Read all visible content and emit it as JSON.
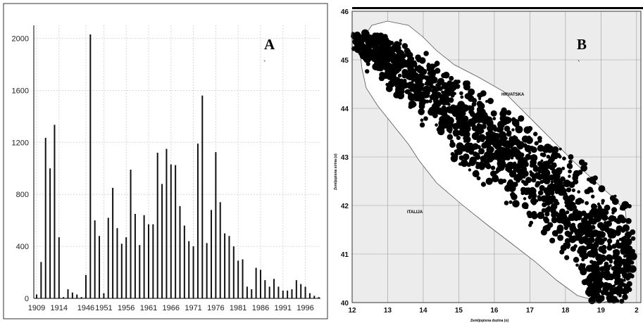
{
  "chart_data": [
    {
      "panel_label": "A",
      "type": "bar",
      "x": [
        1909,
        1910,
        1911,
        1912,
        1913,
        1914,
        1915,
        1916,
        1917,
        1918,
        1919,
        1947,
        1948,
        1949,
        1950,
        1951,
        1952,
        1953,
        1954,
        1955,
        1956,
        1957,
        1958,
        1959,
        1960,
        1961,
        1962,
        1963,
        1964,
        1965,
        1966,
        1967,
        1968,
        1969,
        1970,
        1971,
        1972,
        1973,
        1974,
        1975,
        1976,
        1977,
        1978,
        1979,
        1980,
        1981,
        1982,
        1983,
        1984,
        1985,
        1986,
        1987,
        1988,
        1989,
        1990,
        1991,
        1992,
        1993,
        1994,
        1995,
        1996,
        1997,
        1998,
        1999
      ],
      "values": [
        30,
        280,
        1235,
        1000,
        1335,
        470,
        10,
        70,
        45,
        30,
        10,
        180,
        2030,
        600,
        480,
        40,
        620,
        850,
        540,
        420,
        470,
        990,
        650,
        410,
        640,
        570,
        570,
        1120,
        880,
        1150,
        1030,
        1025,
        710,
        560,
        440,
        400,
        1190,
        1560,
        425,
        680,
        1125,
        740,
        500,
        480,
        400,
        290,
        300,
        90,
        70,
        235,
        220,
        140,
        90,
        150,
        90,
        60,
        60,
        70,
        140,
        110,
        90,
        40,
        20,
        10
      ],
      "xticks": [
        "1909",
        "1914",
        "1946",
        "1951",
        "1956",
        "1961",
        "1966",
        "1971",
        "1976",
        "1981",
        "1986",
        "1991",
        "1996"
      ],
      "yticks": [
        "0",
        "400",
        "800",
        "1200",
        "1600",
        "2000"
      ],
      "ylim": [
        0,
        2100
      ],
      "grid": true,
      "note": "`"
    },
    {
      "panel_label": "B",
      "type": "scatter",
      "xlim": [
        12,
        20
      ],
      "ylim": [
        40,
        46
      ],
      "xticks": [
        "12",
        "13",
        "14",
        "15",
        "16",
        "17",
        "18",
        "19",
        "2"
      ],
      "yticks": [
        "40",
        "41",
        "42",
        "43",
        "44",
        "45",
        "46"
      ],
      "xlabel": "Zemljopisna duzina (o)",
      "ylabel": "Zemljopisna sirina (o)",
      "regions": [
        "HRVATSKA",
        "ITALIJA"
      ],
      "colors": {
        "points": "#000000",
        "sea": "#ffffff",
        "land": "#ececec"
      },
      "grid": true,
      "note": "`"
    }
  ]
}
